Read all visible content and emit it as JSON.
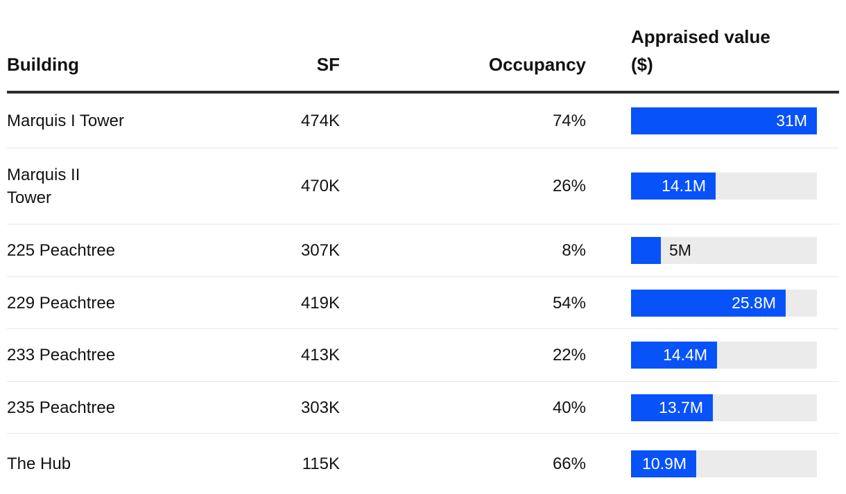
{
  "table": {
    "header": {
      "building": "Building",
      "sf": "SF",
      "occupancy": "Occupancy",
      "appraised": "Appraised value\n($)"
    },
    "rows": [
      {
        "building": "Marquis I Tower",
        "sf": "474K",
        "occupancy": "74%",
        "value_label": "31M",
        "value_musd": 31.0
      },
      {
        "building": "Marquis II\nTower",
        "sf": "470K",
        "occupancy": "26%",
        "value_label": "14.1M",
        "value_musd": 14.1
      },
      {
        "building": "225 Peachtree",
        "sf": "307K",
        "occupancy": "8%",
        "value_label": "5M",
        "value_musd": 5.0
      },
      {
        "building": "229 Peachtree",
        "sf": "419K",
        "occupancy": "54%",
        "value_label": "25.8M",
        "value_musd": 25.8
      },
      {
        "building": "233 Peachtree",
        "sf": "413K",
        "occupancy": "22%",
        "value_label": "14.4M",
        "value_musd": 14.4
      },
      {
        "building": "235 Peachtree",
        "sf": "303K",
        "occupancy": "40%",
        "value_label": "13.7M",
        "value_musd": 13.7
      },
      {
        "building": "The Hub",
        "sf": "115K",
        "occupancy": "66%",
        "value_label": "10.9M",
        "value_musd": 10.9
      }
    ]
  },
  "colors": {
    "bar_fill": "#0852fa",
    "bar_track": "#ebebeb",
    "header_rule": "#2b2b2b",
    "row_divider": "#e7e7e7",
    "text": "#121212",
    "bar_label_inside": "#ffffff"
  },
  "chart_data": {
    "type": "table",
    "title": "",
    "columns": [
      "Building",
      "SF",
      "Occupancy",
      "Appraised value ($)"
    ],
    "rows": [
      [
        "Marquis I Tower",
        "474K",
        "74%",
        "31M"
      ],
      [
        "Marquis II Tower",
        "470K",
        "26%",
        "14.1M"
      ],
      [
        "225 Peachtree",
        "307K",
        "8%",
        "5M"
      ],
      [
        "229 Peachtree",
        "419K",
        "54%",
        "25.8M"
      ],
      [
        "233 Peachtree",
        "413K",
        "22%",
        "14.4M"
      ],
      [
        "235 Peachtree",
        "303K",
        "40%",
        "13.7M"
      ],
      [
        "The Hub",
        "115K",
        "66%",
        "10.9M"
      ]
    ],
    "embedded_bar_chart": {
      "type": "bar",
      "orientation": "horizontal",
      "column": "Appraised value ($)",
      "categories": [
        "Marquis I Tower",
        "Marquis II Tower",
        "225 Peachtree",
        "229 Peachtree",
        "233 Peachtree",
        "235 Peachtree",
        "The Hub"
      ],
      "values_musd": [
        31.0,
        14.1,
        5.0,
        25.8,
        14.4,
        13.7,
        10.9
      ],
      "value_labels": [
        "31M",
        "14.1M",
        "5M",
        "25.8M",
        "14.4M",
        "13.7M",
        "10.9M"
      ],
      "xlim": [
        0,
        31.0
      ],
      "unit": "M USD",
      "grid": false,
      "legend": false
    }
  }
}
